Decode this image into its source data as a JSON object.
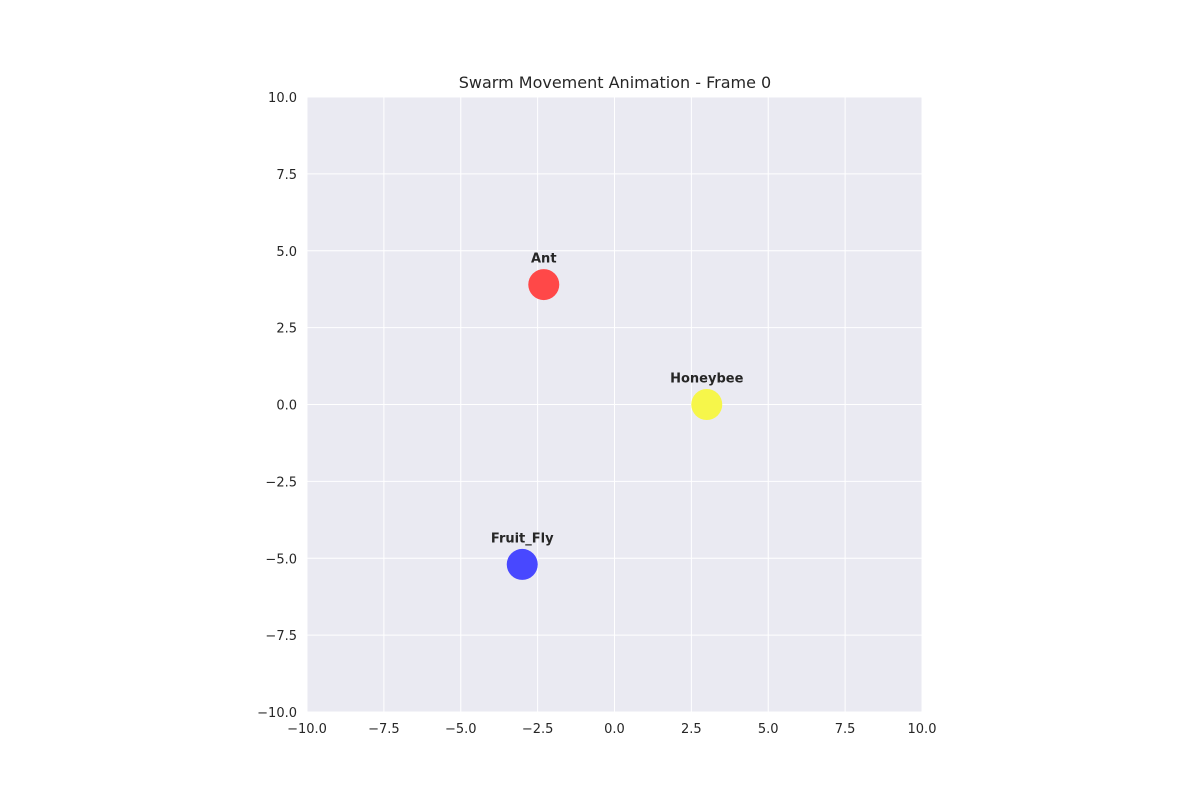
{
  "chart_data": {
    "type": "scatter",
    "title": "Swarm Movement Animation - Frame 0",
    "xlabel": "",
    "ylabel": "",
    "xlim": [
      -10,
      10
    ],
    "ylim": [
      -10,
      10
    ],
    "xticks": [
      -10,
      -7.5,
      -5,
      -2.5,
      0,
      2.5,
      5,
      7.5,
      10
    ],
    "yticks": [
      -10,
      -7.5,
      -5,
      -2.5,
      0,
      2.5,
      5,
      7.5,
      10
    ],
    "xtick_labels": [
      "−10.0",
      "−7.5",
      "−5.0",
      "−2.5",
      "0.0",
      "2.5",
      "5.0",
      "7.5",
      "10.0"
    ],
    "ytick_labels": [
      "−10.0",
      "−7.5",
      "−5.0",
      "−2.5",
      "0.0",
      "2.5",
      "5.0",
      "7.5",
      "10.0"
    ],
    "grid": true,
    "background_color": "#eaeaf2",
    "points": [
      {
        "label": "Ant",
        "x": -2.3,
        "y": 3.9,
        "color": "#ff4848"
      },
      {
        "label": "Honeybee",
        "x": 3.0,
        "y": 0.0,
        "color": "#f6f64a"
      },
      {
        "label": "Fruit_Fly",
        "x": -3.0,
        "y": -5.2,
        "color": "#4848ff"
      }
    ]
  }
}
